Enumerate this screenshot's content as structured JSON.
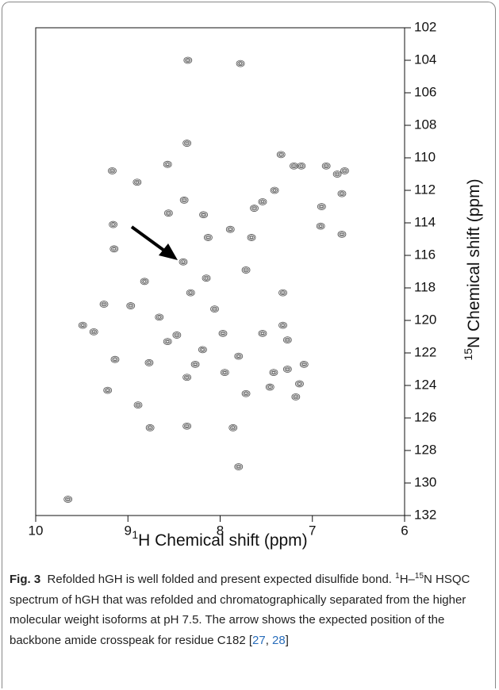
{
  "chart_data": {
    "type": "scatter",
    "x_label": [
      "1",
      "H Chemical shift (ppm)"
    ],
    "y_label": [
      "15",
      "N Chemical shift (ppm)"
    ],
    "xlim": [
      10,
      6
    ],
    "ylim": [
      132,
      102
    ],
    "xticks": [
      10,
      9,
      8,
      7,
      6
    ],
    "yticks": [
      102,
      104,
      106,
      108,
      110,
      112,
      114,
      116,
      118,
      120,
      122,
      124,
      126,
      128,
      130,
      132
    ],
    "color": "#555555",
    "x": [
      8.35,
      7.78,
      8.36,
      9.17,
      8.57,
      8.9,
      8.39,
      8.56,
      8.18,
      9.16,
      9.15,
      8.4,
      8.13,
      7.89,
      7.66,
      7.63,
      7.54,
      7.41,
      7.2,
      7.34,
      6.85,
      7.12,
      6.73,
      6.65,
      6.68,
      6.9,
      6.91,
      6.68,
      7.32,
      7.32,
      8.82,
      8.97,
      9.26,
      9.49,
      9.37,
      9.14,
      8.77,
      8.27,
      7.95,
      7.72,
      9.22,
      8.89,
      8.76,
      8.36,
      7.86,
      7.42,
      7.27,
      7.09,
      7.46,
      7.14,
      7.8,
      9.65,
      8.47,
      8.19,
      7.8,
      7.54,
      7.27,
      7.18,
      8.15,
      7.72,
      8.66,
      8.06,
      8.32,
      7.97,
      8.57,
      8.36
    ],
    "values": [
      104.0,
      104.2,
      109.1,
      110.8,
      110.4,
      111.5,
      112.6,
      113.4,
      113.5,
      114.1,
      115.6,
      116.4,
      114.9,
      114.4,
      114.9,
      113.1,
      112.7,
      112.0,
      110.5,
      109.8,
      110.5,
      110.5,
      111.0,
      110.8,
      112.2,
      113.0,
      114.2,
      114.7,
      118.3,
      120.3,
      117.6,
      119.1,
      119.0,
      120.3,
      120.7,
      122.4,
      122.6,
      122.7,
      123.2,
      124.5,
      124.3,
      125.2,
      126.6,
      126.5,
      126.6,
      123.2,
      123.0,
      122.7,
      124.1,
      123.9,
      129.0,
      131.0,
      120.9,
      121.8,
      122.2,
      120.8,
      121.2,
      124.7,
      117.4,
      116.9,
      119.8,
      119.3,
      118.3,
      120.8,
      121.3,
      123.5
    ]
  },
  "caption": {
    "segments": [
      "Fig. 3",
      "Refolded hGH is well folded and present expected disulfide bond. ",
      "1",
      "H–",
      "15",
      "N HSQC spectrum of hGH that was refolded and chromatographically separated from the higher molecular weight isoforms at pH 7.5. The arrow shows the expected position of the backbone amide crosspeak for residue C182 [",
      "27",
      ", ",
      "28",
      "]"
    ]
  }
}
